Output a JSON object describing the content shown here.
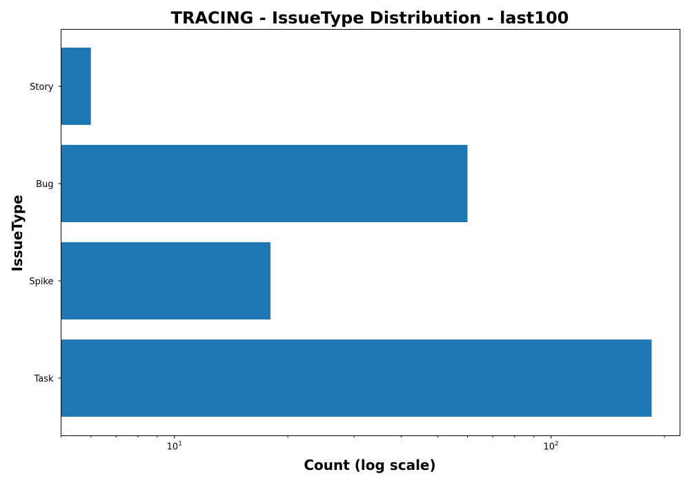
{
  "chart_data": {
    "type": "bar",
    "orientation": "horizontal",
    "title": "TRACING - IssueType Distribution - last100",
    "xlabel": "Count (log scale)",
    "ylabel": "IssueType",
    "x_scale": "log",
    "xlim": [
      5,
      220
    ],
    "categories": [
      "Task",
      "Spike",
      "Bug",
      "Story"
    ],
    "values": [
      185,
      18,
      60,
      6
    ],
    "bar_color": "#1f77b4",
    "x_major_ticks": [
      {
        "value": 10,
        "base": "10",
        "exp": "1"
      },
      {
        "value": 100,
        "base": "10",
        "exp": "2"
      }
    ],
    "grid": false,
    "legend": "none"
  }
}
